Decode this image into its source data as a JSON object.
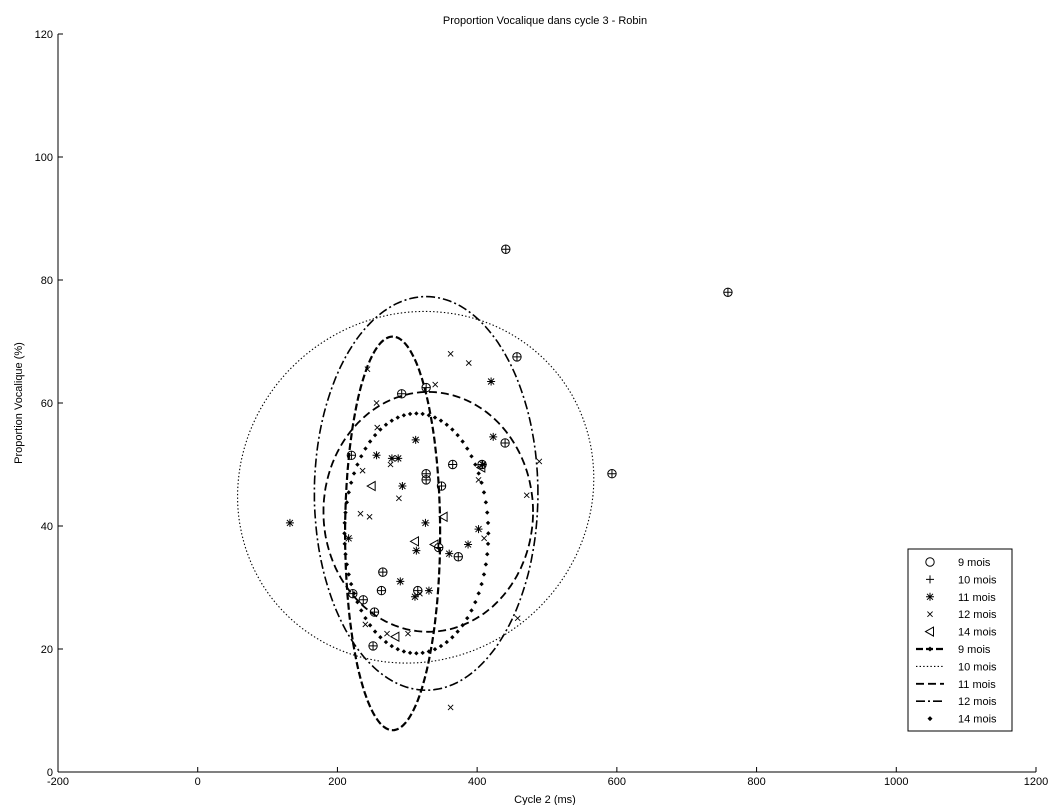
{
  "chart_data": {
    "type": "scatter",
    "title": "Proportion Vocalique dans cycle 3 - Robin",
    "xlabel": "Cycle 2 (ms)",
    "ylabel": "Proportion Vocalique (%)",
    "xlim": [
      -200,
      1200
    ],
    "ylim": [
      0,
      120
    ],
    "xticks": [
      -200,
      0,
      200,
      400,
      600,
      800,
      1000,
      1200
    ],
    "yticks": [
      0,
      20,
      40,
      60,
      80,
      100,
      120
    ],
    "grid": false,
    "legend_position": "bottom-right",
    "series": [
      {
        "name": "9 mois",
        "marker": "circle-plus",
        "points": [
          [
            441,
            85
          ],
          [
            759,
            78
          ],
          [
            457,
            67.5
          ],
          [
            327,
            62.5
          ],
          [
            292,
            61.5
          ],
          [
            220,
            51.5
          ],
          [
            440,
            53.5
          ],
          [
            365,
            50
          ],
          [
            407,
            50
          ],
          [
            327,
            48.5
          ],
          [
            349,
            46.5
          ],
          [
            327,
            47.5
          ],
          [
            345,
            36.5
          ],
          [
            373,
            35
          ],
          [
            265,
            32.5
          ],
          [
            593,
            48.5
          ],
          [
            222,
            29
          ],
          [
            263,
            29.5
          ],
          [
            315,
            29.5
          ],
          [
            237,
            28
          ],
          [
            253,
            26
          ],
          [
            251,
            20.5
          ]
        ]
      },
      {
        "name": "10 mois",
        "marker": "plus",
        "points": []
      },
      {
        "name": "11 mois",
        "marker": "asterisk",
        "points": [
          [
            132,
            40.5
          ],
          [
            216,
            38
          ],
          [
            256,
            51.5
          ],
          [
            278,
            51
          ],
          [
            287,
            51
          ],
          [
            312,
            54
          ],
          [
            326,
            40.5
          ],
          [
            293,
            46.5
          ],
          [
            402,
            39.5
          ],
          [
            420,
            63.5
          ],
          [
            423,
            54.5
          ],
          [
            387,
            37
          ],
          [
            360,
            35.5
          ],
          [
            313,
            36
          ],
          [
            290,
            31
          ],
          [
            331,
            29.5
          ],
          [
            311,
            28.5
          ],
          [
            408,
            50
          ]
        ]
      },
      {
        "name": "12 mois",
        "marker": "x",
        "points": [
          [
            243,
            65.5
          ],
          [
            362,
            68
          ],
          [
            388,
            66.5
          ],
          [
            340,
            63
          ],
          [
            256,
            60
          ],
          [
            257,
            56
          ],
          [
            276,
            50
          ],
          [
            236,
            49
          ],
          [
            288,
            44.5
          ],
          [
            233,
            42
          ],
          [
            246,
            41.5
          ],
          [
            410,
            38
          ],
          [
            402,
            47.5
          ],
          [
            471,
            45
          ],
          [
            489,
            50.5
          ],
          [
            458,
            25
          ],
          [
            362,
            10.5
          ],
          [
            301,
            22.5
          ],
          [
            240,
            24
          ],
          [
            271,
            22.5
          ],
          [
            318,
            29
          ]
        ]
      },
      {
        "name": "14 mois",
        "marker": "triangle-left",
        "points": [
          [
            249,
            46.5
          ],
          [
            352,
            41.5
          ],
          [
            311,
            37.5
          ],
          [
            339,
            37
          ],
          [
            283,
            22
          ],
          [
            406,
            49.5
          ]
        ]
      }
    ],
    "ellipses": [
      {
        "name": "9 mois",
        "style": "dash-dot-markers",
        "cx": 279,
        "cy": 38.8,
        "rx": 68,
        "ry": 32,
        "angle_deg": 0
      },
      {
        "name": "10 mois",
        "style": "dotted",
        "cx": 312,
        "cy": 46.3,
        "rx": 260,
        "ry": 28,
        "angle_deg": 38
      },
      {
        "name": "11 mois",
        "style": "dashed",
        "cx": 330,
        "cy": 42.3,
        "rx": 150,
        "ry": 19.5,
        "angle_deg": 0
      },
      {
        "name": "12 mois",
        "style": "dash-dot",
        "cx": 327,
        "cy": 45.3,
        "rx": 160,
        "ry": 32,
        "angle_deg": 0
      },
      {
        "name": "14 mois",
        "style": "diamond-dots",
        "cx": 313,
        "cy": 38.8,
        "rx": 103,
        "ry": 19.5,
        "angle_deg": 0
      }
    ],
    "legend": [
      {
        "label": "9 mois",
        "kind": "marker",
        "marker": "circle"
      },
      {
        "label": "10 mois",
        "kind": "marker",
        "marker": "plus"
      },
      {
        "label": "11 mois",
        "kind": "marker",
        "marker": "asterisk"
      },
      {
        "label": "12 mois",
        "kind": "marker",
        "marker": "x"
      },
      {
        "label": "14 mois",
        "kind": "marker",
        "marker": "triangle-left"
      },
      {
        "label": "9 mois",
        "kind": "line",
        "style": "dash-dot-markers"
      },
      {
        "label": "10 mois",
        "kind": "line",
        "style": "dotted"
      },
      {
        "label": "11 mois",
        "kind": "line",
        "style": "dashed"
      },
      {
        "label": "12 mois",
        "kind": "line",
        "style": "dash-dot"
      },
      {
        "label": "14 mois",
        "kind": "line",
        "style": "diamond-dots"
      }
    ]
  }
}
